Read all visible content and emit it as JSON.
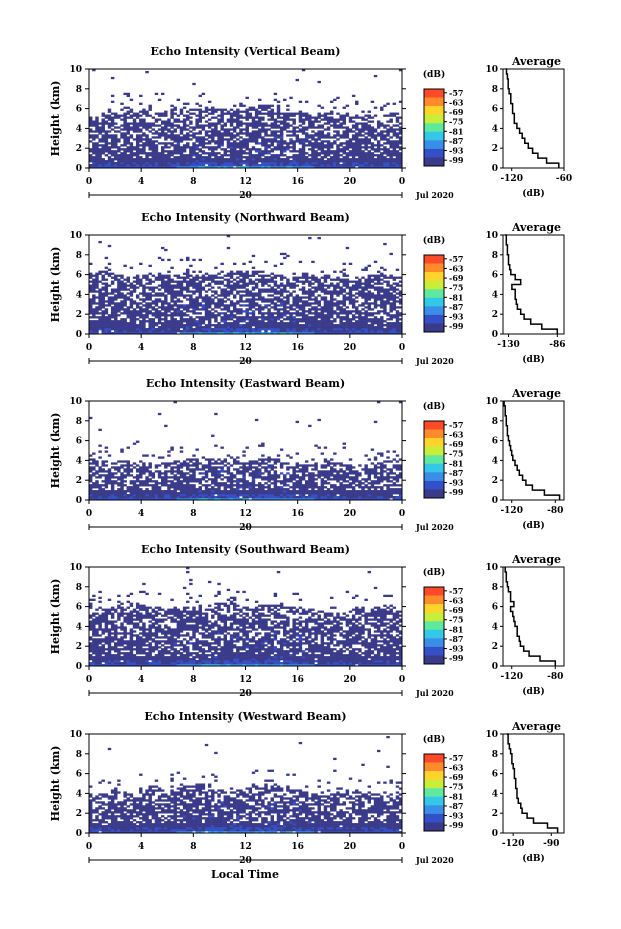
{
  "chart_data": [
    {
      "type": "heatmap",
      "title": "Echo Intensity (Vertical Beam)",
      "ylabel": "Height (km)",
      "xlabel": "Local Time",
      "date_label": "Jul 2020",
      "day_label": "20",
      "x_ticks": [
        "0",
        "4",
        "8",
        "12",
        "16",
        "20",
        "0"
      ],
      "y_ticks": [
        "0",
        "2",
        "4",
        "6",
        "8",
        "10"
      ],
      "xlim": [
        0,
        24
      ],
      "ylim": [
        0,
        10
      ],
      "colorbar": {
        "unit": "(dB)",
        "ticks": [
          "-57",
          "-63",
          "-69",
          "-75",
          "-81",
          "-87",
          "-93",
          "-99"
        ],
        "colors": [
          "#ff4a2a",
          "#ff8b2a",
          "#ffd42a",
          "#c8ee3a",
          "#5ee8a0",
          "#33c8e8",
          "#3a8ee8",
          "#3450c8",
          "#3a3a8a"
        ]
      },
      "echo_top_profile_km": [
        5.2,
        5.5,
        6.0,
        6.2,
        6.0,
        5.5,
        5.8,
        6.0,
        6.0,
        6.2,
        6.0,
        5.8,
        6.1,
        6.4,
        6.3,
        6.0,
        5.8,
        5.4,
        5.6,
        5.8,
        5.5,
        5.2,
        5.4,
        5.6,
        5.5
      ],
      "average": {
        "title": "Average",
        "xlabel": "(dB)",
        "x_ticks": [
          "-120",
          "-60"
        ],
        "xlim": [
          -130,
          -60
        ],
        "ylim": [
          0,
          10
        ],
        "y_ticks": [
          "0",
          "2",
          "4",
          "6",
          "8",
          "10"
        ],
        "height_km": [
          0,
          0.5,
          1,
          1.5,
          2,
          2.5,
          3,
          3.5,
          4,
          4.5,
          5,
          5.5,
          6,
          6.5,
          7,
          7.5,
          8,
          8.5,
          9,
          9.5,
          10
        ],
        "db": [
          -66,
          -80,
          -90,
          -96,
          -101,
          -105,
          -108,
          -111,
          -114,
          -117,
          -117,
          -119,
          -119,
          -121,
          -121,
          -123,
          -124,
          -124,
          -125,
          -126,
          -127
        ]
      }
    },
    {
      "type": "heatmap",
      "title": "Echo Intensity (Northward Beam)",
      "ylabel": "Height (km)",
      "date_label": "Jul 2020",
      "day_label": "20",
      "x_ticks": [
        "0",
        "4",
        "8",
        "12",
        "16",
        "20",
        "0"
      ],
      "y_ticks": [
        "0",
        "2",
        "4",
        "6",
        "8",
        "10"
      ],
      "xlim": [
        0,
        24
      ],
      "ylim": [
        0,
        10
      ],
      "colorbar": {
        "unit": "(dB)",
        "ticks": [
          "-57",
          "-63",
          "-69",
          "-75",
          "-81",
          "-87",
          "-93",
          "-99"
        ],
        "colors": [
          "#ff4a2a",
          "#ff8b2a",
          "#ffd42a",
          "#c8ee3a",
          "#5ee8a0",
          "#33c8e8",
          "#3a8ee8",
          "#3450c8",
          "#3a3a8a"
        ]
      },
      "echo_top_profile_km": [
        6.2,
        6.4,
        6.0,
        5.8,
        6.0,
        6.3,
        6.1,
        6.0,
        6.4,
        6.2,
        6.0,
        6.2,
        6.5,
        6.4,
        6.2,
        6.0,
        5.8,
        6.1,
        6.0,
        5.8,
        5.6,
        5.8,
        6.0,
        5.9,
        5.7
      ],
      "average": {
        "title": "Average",
        "xlabel": "(dB)",
        "x_ticks": [
          "-130",
          "-86"
        ],
        "xlim": [
          -135,
          -80
        ],
        "ylim": [
          0,
          10
        ],
        "y_ticks": [
          "0",
          "2",
          "4",
          "6",
          "8",
          "10"
        ],
        "height_km": [
          0,
          0.5,
          1,
          1.5,
          2,
          2.5,
          3,
          3.5,
          4,
          4.5,
          5,
          5.5,
          6,
          6.5,
          7,
          7.5,
          8,
          8.5,
          9,
          9.5,
          10
        ],
        "db": [
          -86,
          -100,
          -110,
          -116,
          -119,
          -122,
          -123,
          -124,
          -124,
          -127,
          -119,
          -124,
          -128,
          -129,
          -130,
          -130,
          -131,
          -131,
          -132,
          -132,
          -133
        ]
      }
    },
    {
      "type": "heatmap",
      "title": "Echo Intensity (Eastward Beam)",
      "ylabel": "Height (km)",
      "date_label": "Jul 2020",
      "day_label": "20",
      "x_ticks": [
        "0",
        "4",
        "8",
        "12",
        "16",
        "20",
        "0"
      ],
      "y_ticks": [
        "0",
        "2",
        "4",
        "6",
        "8",
        "10"
      ],
      "xlim": [
        0,
        24
      ],
      "ylim": [
        0,
        10
      ],
      "colorbar": {
        "unit": "(dB)",
        "ticks": [
          "-57",
          "-63",
          "-69",
          "-75",
          "-81",
          "-87",
          "-93",
          "-99"
        ],
        "colors": [
          "#ff4a2a",
          "#ff8b2a",
          "#ffd42a",
          "#c8ee3a",
          "#5ee8a0",
          "#33c8e8",
          "#3a8ee8",
          "#3450c8",
          "#3a3a8a"
        ]
      },
      "echo_top_profile_km": [
        4.2,
        4.0,
        3.8,
        4.4,
        3.9,
        3.6,
        3.8,
        4.0,
        4.2,
        4.3,
        4.2,
        4.0,
        3.8,
        4.2,
        4.4,
        4.0,
        3.8,
        3.6,
        3.9,
        3.8,
        3.6,
        3.4,
        3.8,
        4.0,
        4.2
      ],
      "average": {
        "title": "Average",
        "xlabel": "(dB)",
        "x_ticks": [
          "-120",
          "-80"
        ],
        "xlim": [
          -128,
          -72
        ],
        "ylim": [
          0,
          10
        ],
        "y_ticks": [
          "0",
          "2",
          "4",
          "6",
          "8",
          "10"
        ],
        "height_km": [
          0,
          0.5,
          1,
          1.5,
          2,
          2.5,
          3,
          3.5,
          4,
          4.5,
          5,
          5.5,
          6,
          6.5,
          7,
          7.5,
          8,
          8.5,
          9,
          9.5,
          10
        ],
        "db": [
          -76,
          -90,
          -101,
          -107,
          -110,
          -113,
          -115,
          -117,
          -119,
          -120,
          -121,
          -122,
          -123,
          -124,
          -124,
          -125,
          -125,
          -126,
          -126,
          -127,
          -127
        ]
      }
    },
    {
      "type": "heatmap",
      "title": "Echo Intensity (Southward Beam)",
      "ylabel": "Height (km)",
      "date_label": "Jul 2020",
      "day_label": "20",
      "x_ticks": [
        "0",
        "4",
        "8",
        "12",
        "16",
        "20",
        "0"
      ],
      "y_ticks": [
        "0",
        "2",
        "4",
        "6",
        "8",
        "10"
      ],
      "xlim": [
        0,
        24
      ],
      "ylim": [
        0,
        10
      ],
      "colorbar": {
        "unit": "(dB)",
        "ticks": [
          "-57",
          "-63",
          "-69",
          "-75",
          "-81",
          "-87",
          "-93",
          "-99"
        ],
        "colors": [
          "#ff4a2a",
          "#ff8b2a",
          "#ffd42a",
          "#c8ee3a",
          "#5ee8a0",
          "#33c8e8",
          "#3a8ee8",
          "#3450c8",
          "#3a3a8a"
        ]
      },
      "echo_top_profile_km": [
        6.2,
        6.0,
        5.8,
        6.4,
        6.2,
        6.0,
        5.8,
        6.1,
        6.0,
        6.2,
        6.4,
        6.2,
        6.0,
        6.2,
        6.3,
        6.1,
        6.0,
        5.8,
        5.6,
        5.4,
        5.6,
        5.8,
        5.9,
        6.0,
        5.8
      ],
      "average": {
        "title": "Average",
        "xlabel": "(dB)",
        "x_ticks": [
          "-120",
          "-80"
        ],
        "xlim": [
          -128,
          -72
        ],
        "ylim": [
          0,
          10
        ],
        "y_ticks": [
          "0",
          "2",
          "4",
          "6",
          "8",
          "10"
        ],
        "height_km": [
          0,
          0.5,
          1,
          1.5,
          2,
          2.5,
          3,
          3.5,
          4,
          4.5,
          5,
          5.5,
          6,
          6.5,
          7,
          7.5,
          8,
          8.5,
          9,
          9.5,
          10
        ],
        "db": [
          -80,
          -94,
          -104,
          -109,
          -112,
          -113,
          -115,
          -115,
          -117,
          -118,
          -119,
          -121,
          -118,
          -121,
          -121,
          -123,
          -124,
          -125,
          -125,
          -126,
          -126
        ]
      }
    },
    {
      "type": "heatmap",
      "title": "Echo Intensity (Westward Beam)",
      "ylabel": "Height (km)",
      "date_label": "Jul 2020",
      "day_label": "20",
      "x_ticks": [
        "0",
        "4",
        "8",
        "12",
        "16",
        "20",
        "0"
      ],
      "y_ticks": [
        "0",
        "2",
        "4",
        "6",
        "8",
        "10"
      ],
      "xlim": [
        0,
        24
      ],
      "ylim": [
        0,
        10
      ],
      "colorbar": {
        "unit": "(dB)",
        "ticks": [
          "-57",
          "-63",
          "-69",
          "-75",
          "-81",
          "-87",
          "-93",
          "-99"
        ],
        "colors": [
          "#ff4a2a",
          "#ff8b2a",
          "#ffd42a",
          "#c8ee3a",
          "#5ee8a0",
          "#33c8e8",
          "#3a8ee8",
          "#3450c8",
          "#3a3a8a"
        ]
      },
      "echo_top_profile_km": [
        3.8,
        4.2,
        4.4,
        4.0,
        4.6,
        4.8,
        4.2,
        5.0,
        5.2,
        4.8,
        4.4,
        4.2,
        4.6,
        4.8,
        5.0,
        4.6,
        4.4,
        4.0,
        3.8,
        4.0,
        4.2,
        4.4,
        4.0,
        3.8,
        4.2
      ],
      "average": {
        "title": "Average",
        "xlabel": "(dB)",
        "x_ticks": [
          "-120",
          "-90"
        ],
        "xlim": [
          -128,
          -80
        ],
        "ylim": [
          0,
          10
        ],
        "y_ticks": [
          "0",
          "2",
          "4",
          "6",
          "8",
          "10"
        ],
        "height_km": [
          0,
          0.5,
          1,
          1.5,
          2,
          2.5,
          3,
          3.5,
          4,
          4.5,
          5,
          5.5,
          6,
          6.5,
          7,
          7.5,
          8,
          8.5,
          9,
          9.5,
          10
        ],
        "db": [
          -85,
          -93,
          -104,
          -109,
          -113,
          -114,
          -116,
          -117,
          -117,
          -118,
          -118,
          -119,
          -119,
          -120,
          -121,
          -121,
          -122,
          -123,
          -124,
          -124,
          -125
        ]
      }
    }
  ]
}
